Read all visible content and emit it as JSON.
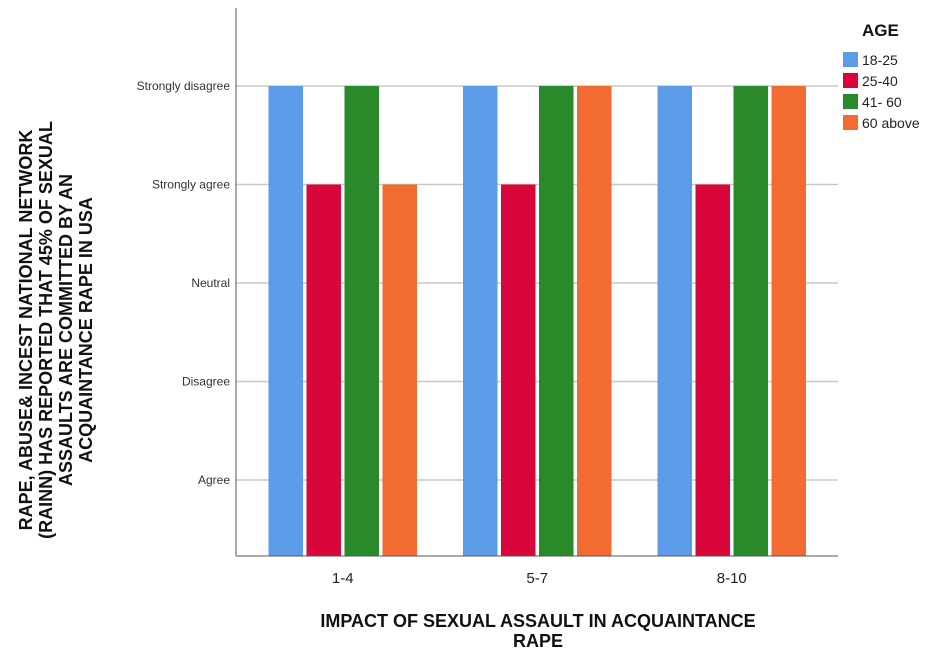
{
  "chart_data": {
    "type": "bar",
    "categories": [
      "1-4",
      "5-7",
      "8-10"
    ],
    "y_levels": [
      "Agree",
      "Disagree",
      "Neutral",
      "Strongly agree",
      "Strongly disagree"
    ],
    "series": [
      {
        "name": "18-25",
        "values": [
          "Strongly disagree",
          "Strongly disagree",
          "Strongly disagree"
        ],
        "color": "#5B9BE8"
      },
      {
        "name": "25-40",
        "values": [
          "Strongly agree",
          "Strongly agree",
          "Strongly agree"
        ],
        "color": "#D8063B"
      },
      {
        "name": "41- 60",
        "values": [
          "Strongly disagree",
          "Strongly disagree",
          "Strongly disagree"
        ],
        "color": "#2A8A2A"
      },
      {
        "name": "60 above",
        "values": [
          "Strongly agree",
          "Strongly disagree",
          "Strongly disagree"
        ],
        "color": "#F26B30"
      }
    ],
    "xlabel": [
      "IMPACT OF SEXUAL ASSAULT IN ACQUAINTANCE",
      "RAPE"
    ],
    "ylabel": [
      "RAPE, ABUSE& INCEST NATIONAL NETWORK",
      "(RAINN) HAS REPORTED THAT 45% OF SEXUAL",
      "ASSAULTS ARE COMMITTED BY AN",
      "ACQUAINTANCE RAPE IN USA"
    ],
    "legend_title": "AGE",
    "legend_position": "top-right",
    "grid": true
  }
}
